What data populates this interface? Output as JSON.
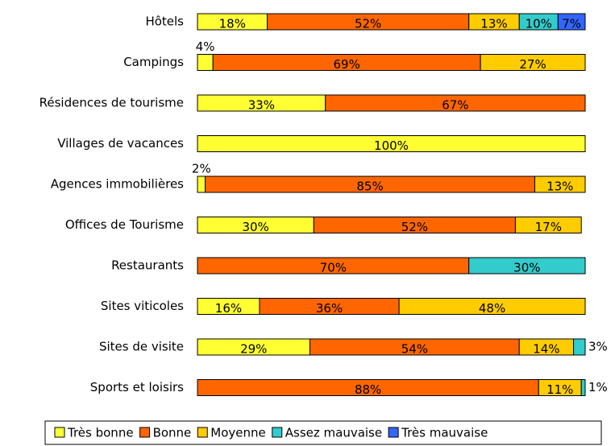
{
  "chart_data": {
    "type": "stacked-bar",
    "orientation": "horizontal",
    "categories": [
      "Hôtels",
      "Campings",
      "Résidences de tourisme",
      "Villages de vacances",
      "Agences immobilières",
      "Offices de Tourisme",
      "Restaurants",
      "Sites viticoles",
      "Sites de visite",
      "Sports et loisirs"
    ],
    "xlim": [
      0,
      100
    ],
    "legend": "bottom",
    "series": [
      {
        "name": "Très bonne",
        "color": "#ffff33",
        "values": [
          18,
          4,
          33,
          100,
          2,
          30,
          null,
          16,
          29,
          null
        ],
        "value_labels": [
          "18%",
          "4%",
          "33%",
          "100%",
          "2%",
          "30%",
          null,
          "16%",
          "29%",
          null
        ]
      },
      {
        "name": "Bonne",
        "color": "#ff6600",
        "values": [
          52,
          69,
          67,
          null,
          85,
          52,
          70,
          36,
          54,
          88
        ],
        "value_labels": [
          "52%",
          "69%",
          "67%",
          null,
          "85%",
          "52%",
          "70%",
          "36%",
          "54%",
          "88%"
        ]
      },
      {
        "name": "Moyenne",
        "color": "#ffcc00",
        "values": [
          13,
          27,
          null,
          null,
          13,
          17,
          null,
          48,
          14,
          11
        ],
        "value_labels": [
          "13%",
          "27%",
          null,
          null,
          "13%",
          "17%",
          null,
          "48%",
          "14%",
          "11%"
        ]
      },
      {
        "name": "Assez mauvaise",
        "color": "#33cccc",
        "values": [
          10,
          null,
          null,
          null,
          null,
          null,
          30,
          null,
          3,
          1
        ],
        "value_labels": [
          "10%",
          null,
          null,
          null,
          null,
          null,
          "30%",
          null,
          "3%",
          "1%"
        ]
      },
      {
        "name": "Très mauvaise",
        "color": "#3366ff",
        "values": [
          7,
          null,
          null,
          null,
          null,
          null,
          null,
          null,
          null,
          null
        ],
        "value_labels": [
          "7%",
          null,
          null,
          null,
          null,
          null,
          null,
          null,
          null,
          null
        ]
      }
    ]
  }
}
